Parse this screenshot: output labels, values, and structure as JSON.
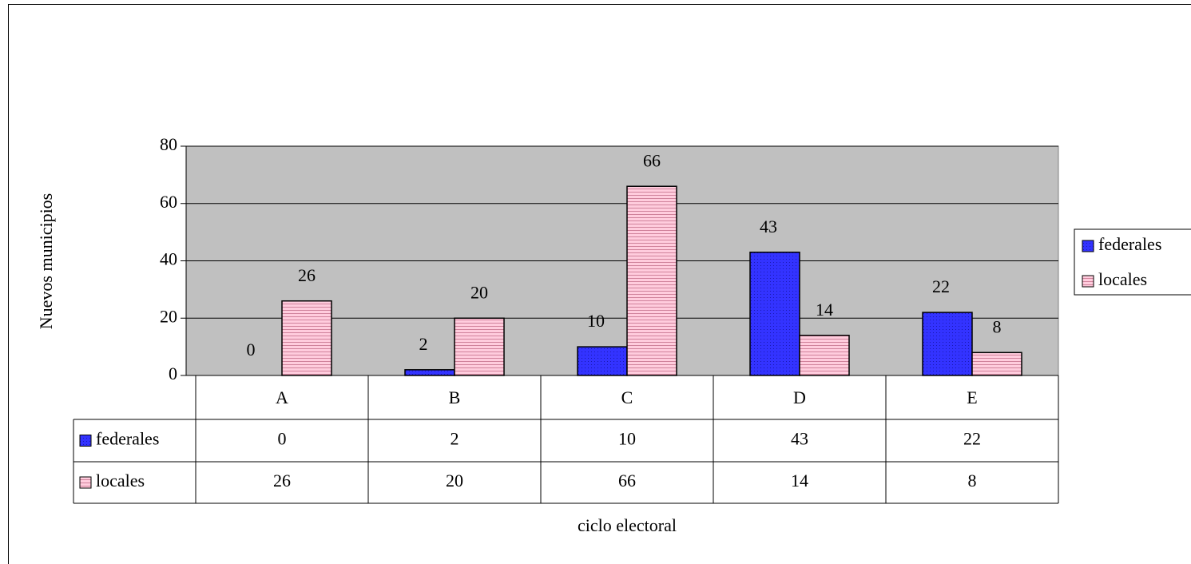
{
  "chart_data": {
    "type": "bar",
    "x_label": "ciclo electoral",
    "y_label": "Nuevos municipios",
    "categories": [
      "A",
      "B",
      "C",
      "D",
      "E"
    ],
    "series": [
      {
        "name": "federales",
        "color": "#3333ff",
        "values": [
          0,
          2,
          10,
          43,
          22
        ]
      },
      {
        "name": "locales",
        "color": "#ffccdd",
        "values": [
          26,
          20,
          66,
          14,
          8
        ]
      }
    ],
    "ylim": [
      0,
      80
    ],
    "yticks": [
      0,
      20,
      40,
      60,
      80
    ],
    "grid": true,
    "legend": "right"
  }
}
